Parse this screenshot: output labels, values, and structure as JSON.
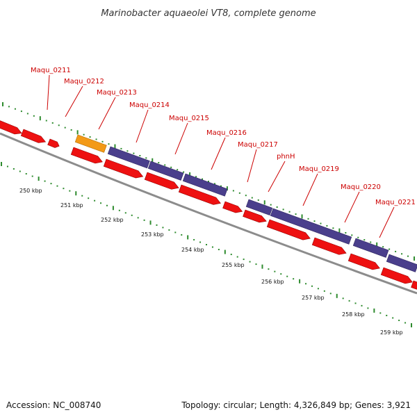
{
  "title": "Marinobacter aquaeolei VT8, complete genome",
  "footer": {
    "accession": "Accession: NC_008740",
    "summary": "Topology: circular; Length: 4,326,849 bp; Genes: 3,921"
  },
  "colors": {
    "cds": "#ee1111",
    "cds_dark": "#990000",
    "gene_blue": "#4a3f8c",
    "gene_orange": "#f39a17",
    "backbone": "#8c8c8c",
    "tick_green": "#2e8b2e",
    "label_red": "#cc0000"
  },
  "gene_labels": [
    "Maqu_0211",
    "Maqu_0212",
    "Maqu_0213",
    "Maqu_0214",
    "Maqu_0215",
    "Maqu_0216",
    "Maqu_0217",
    "phnH",
    "Maqu_0219",
    "Maqu_0220",
    "Maqu_0221"
  ],
  "kbp_labels": [
    "250 kbp",
    "251 kbp",
    "252 kbp",
    "253 kbp",
    "254 kbp",
    "255 kbp",
    "256 kbp",
    "257 kbp",
    "258 kbp",
    "259 kbp"
  ]
}
